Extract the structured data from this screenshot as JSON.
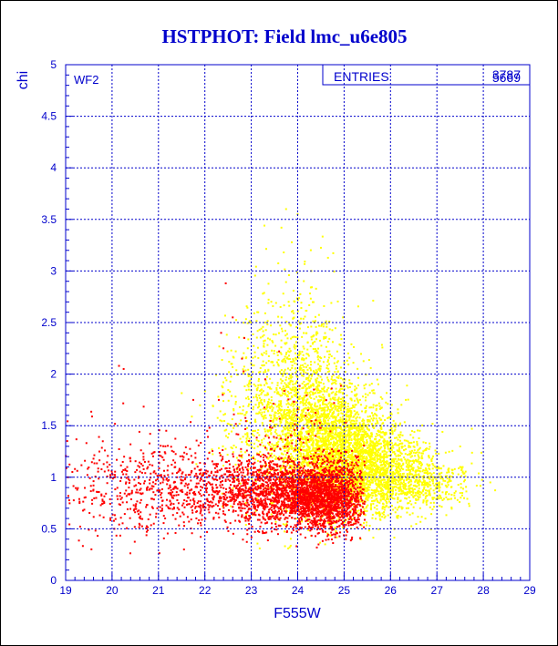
{
  "chart_data": {
    "type": "scatter",
    "title": "HSTPHOT: Field lmc_u6e805",
    "xlabel": "F555W",
    "ylabel": "chi",
    "xlim": [
      19,
      29
    ],
    "ylim": [
      0,
      5
    ],
    "x_ticks": [
      "19",
      "20",
      "21",
      "22",
      "23",
      "24",
      "25",
      "26",
      "27",
      "28",
      "29"
    ],
    "y_ticks": [
      "0",
      "0.5",
      "1",
      "1.5",
      "2",
      "2.5",
      "3",
      "3.5",
      "4",
      "4.5",
      "5"
    ],
    "grid": true,
    "panel_label": "WF2",
    "stats_box": {
      "label": "ENTRIES",
      "values": [
        "3787",
        "5669"
      ]
    },
    "series": [
      {
        "color": "#ffff00",
        "entries": 5669,
        "density": [
          {
            "x": 23.2,
            "y": 1.6,
            "sx": 0.5,
            "sy": 0.45,
            "w": 0.08
          },
          {
            "x": 24.3,
            "y": 1.45,
            "sx": 0.55,
            "sy": 0.4,
            "w": 0.25
          },
          {
            "x": 25.0,
            "y": 1.2,
            "sx": 0.55,
            "sy": 0.3,
            "w": 0.35
          },
          {
            "x": 25.8,
            "y": 1.05,
            "sx": 0.6,
            "sy": 0.2,
            "w": 0.2
          },
          {
            "x": 26.8,
            "y": 0.95,
            "sx": 0.5,
            "sy": 0.12,
            "w": 0.06
          },
          {
            "x": 24.0,
            "y": 2.2,
            "sx": 0.5,
            "sy": 0.5,
            "w": 0.06
          }
        ],
        "points": [
          [
            23.75,
            3.6
          ],
          [
            24.0,
            3.55
          ],
          [
            23.65,
            3.42
          ],
          [
            23.7,
            3.18
          ],
          [
            23.25,
            2.78
          ],
          [
            23.15,
            2.6
          ],
          [
            23.3,
            2.5
          ],
          [
            25.5,
            1.42
          ],
          [
            26.6,
            1.15
          ],
          [
            27.5,
            1.1
          ],
          [
            27.05,
            0.95
          ],
          [
            28.15,
            0.95
          ],
          [
            26.2,
            1.25
          ],
          [
            24.6,
            2.35
          ]
        ]
      },
      {
        "color": "#ff0000",
        "entries": 3787,
        "density": [
          {
            "x": 24.6,
            "y": 0.8,
            "sx": 0.45,
            "sy": 0.16,
            "w": 0.45
          },
          {
            "x": 23.5,
            "y": 0.85,
            "sx": 0.7,
            "sy": 0.17,
            "w": 0.3
          },
          {
            "x": 21.8,
            "y": 0.9,
            "sx": 1.0,
            "sy": 0.2,
            "w": 0.15
          },
          {
            "x": 20.2,
            "y": 0.9,
            "sx": 0.8,
            "sy": 0.25,
            "w": 0.06
          },
          {
            "x": 24.0,
            "y": 1.3,
            "sx": 0.9,
            "sy": 0.3,
            "w": 0.04
          }
        ],
        "points": [
          [
            20.15,
            2.08
          ],
          [
            20.25,
            2.05
          ],
          [
            22.45,
            2.88
          ],
          [
            22.35,
            2.4
          ],
          [
            22.4,
            2.25
          ],
          [
            22.85,
            2.35
          ],
          [
            21.75,
            1.75
          ],
          [
            22.05,
            1.45
          ],
          [
            22.1,
            1.48
          ],
          [
            19.2,
            1.08
          ],
          [
            19.3,
            0.75
          ],
          [
            21.55,
            0.3
          ],
          [
            20.05,
            0.5
          ],
          [
            23.6,
            2.22
          ],
          [
            22.3,
            1.75
          ],
          [
            21.15,
            1.3
          ],
          [
            20.5,
            1.05
          ],
          [
            19.6,
            1.18
          ],
          [
            20.9,
            0.55
          ],
          [
            19.05,
            1.0
          ],
          [
            22.8,
            2.15
          ],
          [
            23.3,
            1.95
          ],
          [
            24.35,
            1.85
          ],
          [
            19.9,
            1.1
          ],
          [
            22.6,
            2.55
          ]
        ]
      }
    ]
  }
}
